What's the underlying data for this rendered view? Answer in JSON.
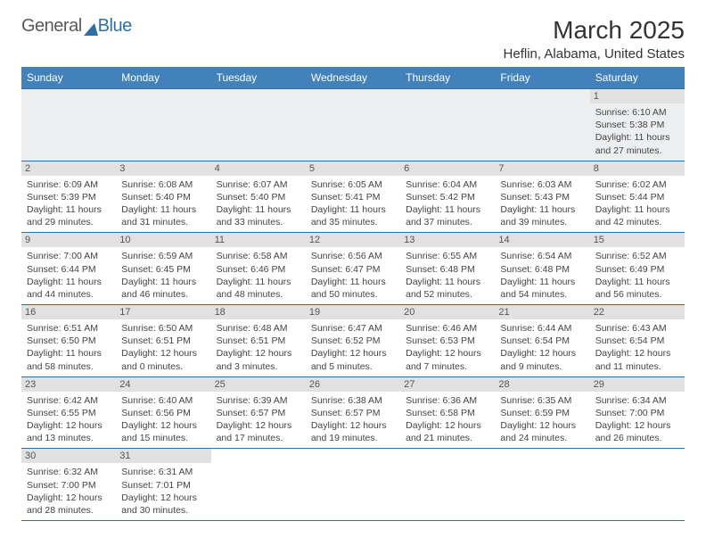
{
  "logo": {
    "word1": "General",
    "word2": "Blue"
  },
  "title": "March 2025",
  "location": "Heflin, Alabama, United States",
  "colors": {
    "header_bg": "#4281b9",
    "header_text": "#ffffff",
    "rule": "#2e6fa8",
    "daynum_bg": "#e1e1e1",
    "cell_bg": "#ffffff",
    "empty_bg": "#eceef0",
    "text": "#444444"
  },
  "day_labels": [
    "Sunday",
    "Monday",
    "Tuesday",
    "Wednesday",
    "Thursday",
    "Friday",
    "Saturday"
  ],
  "weeks": [
    [
      null,
      null,
      null,
      null,
      null,
      null,
      {
        "n": "1",
        "sunrise": "Sunrise: 6:10 AM",
        "sunset": "Sunset: 5:38 PM",
        "daylight1": "Daylight: 11 hours",
        "daylight2": "and 27 minutes."
      }
    ],
    [
      {
        "n": "2",
        "sunrise": "Sunrise: 6:09 AM",
        "sunset": "Sunset: 5:39 PM",
        "daylight1": "Daylight: 11 hours",
        "daylight2": "and 29 minutes."
      },
      {
        "n": "3",
        "sunrise": "Sunrise: 6:08 AM",
        "sunset": "Sunset: 5:40 PM",
        "daylight1": "Daylight: 11 hours",
        "daylight2": "and 31 minutes."
      },
      {
        "n": "4",
        "sunrise": "Sunrise: 6:07 AM",
        "sunset": "Sunset: 5:40 PM",
        "daylight1": "Daylight: 11 hours",
        "daylight2": "and 33 minutes."
      },
      {
        "n": "5",
        "sunrise": "Sunrise: 6:05 AM",
        "sunset": "Sunset: 5:41 PM",
        "daylight1": "Daylight: 11 hours",
        "daylight2": "and 35 minutes."
      },
      {
        "n": "6",
        "sunrise": "Sunrise: 6:04 AM",
        "sunset": "Sunset: 5:42 PM",
        "daylight1": "Daylight: 11 hours",
        "daylight2": "and 37 minutes."
      },
      {
        "n": "7",
        "sunrise": "Sunrise: 6:03 AM",
        "sunset": "Sunset: 5:43 PM",
        "daylight1": "Daylight: 11 hours",
        "daylight2": "and 39 minutes."
      },
      {
        "n": "8",
        "sunrise": "Sunrise: 6:02 AM",
        "sunset": "Sunset: 5:44 PM",
        "daylight1": "Daylight: 11 hours",
        "daylight2": "and 42 minutes."
      }
    ],
    [
      {
        "n": "9",
        "sunrise": "Sunrise: 7:00 AM",
        "sunset": "Sunset: 6:44 PM",
        "daylight1": "Daylight: 11 hours",
        "daylight2": "and 44 minutes."
      },
      {
        "n": "10",
        "sunrise": "Sunrise: 6:59 AM",
        "sunset": "Sunset: 6:45 PM",
        "daylight1": "Daylight: 11 hours",
        "daylight2": "and 46 minutes."
      },
      {
        "n": "11",
        "sunrise": "Sunrise: 6:58 AM",
        "sunset": "Sunset: 6:46 PM",
        "daylight1": "Daylight: 11 hours",
        "daylight2": "and 48 minutes."
      },
      {
        "n": "12",
        "sunrise": "Sunrise: 6:56 AM",
        "sunset": "Sunset: 6:47 PM",
        "daylight1": "Daylight: 11 hours",
        "daylight2": "and 50 minutes."
      },
      {
        "n": "13",
        "sunrise": "Sunrise: 6:55 AM",
        "sunset": "Sunset: 6:48 PM",
        "daylight1": "Daylight: 11 hours",
        "daylight2": "and 52 minutes."
      },
      {
        "n": "14",
        "sunrise": "Sunrise: 6:54 AM",
        "sunset": "Sunset: 6:48 PM",
        "daylight1": "Daylight: 11 hours",
        "daylight2": "and 54 minutes."
      },
      {
        "n": "15",
        "sunrise": "Sunrise: 6:52 AM",
        "sunset": "Sunset: 6:49 PM",
        "daylight1": "Daylight: 11 hours",
        "daylight2": "and 56 minutes."
      }
    ],
    [
      {
        "n": "16",
        "sunrise": "Sunrise: 6:51 AM",
        "sunset": "Sunset: 6:50 PM",
        "daylight1": "Daylight: 11 hours",
        "daylight2": "and 58 minutes."
      },
      {
        "n": "17",
        "sunrise": "Sunrise: 6:50 AM",
        "sunset": "Sunset: 6:51 PM",
        "daylight1": "Daylight: 12 hours",
        "daylight2": "and 0 minutes."
      },
      {
        "n": "18",
        "sunrise": "Sunrise: 6:48 AM",
        "sunset": "Sunset: 6:51 PM",
        "daylight1": "Daylight: 12 hours",
        "daylight2": "and 3 minutes."
      },
      {
        "n": "19",
        "sunrise": "Sunrise: 6:47 AM",
        "sunset": "Sunset: 6:52 PM",
        "daylight1": "Daylight: 12 hours",
        "daylight2": "and 5 minutes."
      },
      {
        "n": "20",
        "sunrise": "Sunrise: 6:46 AM",
        "sunset": "Sunset: 6:53 PM",
        "daylight1": "Daylight: 12 hours",
        "daylight2": "and 7 minutes."
      },
      {
        "n": "21",
        "sunrise": "Sunrise: 6:44 AM",
        "sunset": "Sunset: 6:54 PM",
        "daylight1": "Daylight: 12 hours",
        "daylight2": "and 9 minutes."
      },
      {
        "n": "22",
        "sunrise": "Sunrise: 6:43 AM",
        "sunset": "Sunset: 6:54 PM",
        "daylight1": "Daylight: 12 hours",
        "daylight2": "and 11 minutes."
      }
    ],
    [
      {
        "n": "23",
        "sunrise": "Sunrise: 6:42 AM",
        "sunset": "Sunset: 6:55 PM",
        "daylight1": "Daylight: 12 hours",
        "daylight2": "and 13 minutes."
      },
      {
        "n": "24",
        "sunrise": "Sunrise: 6:40 AM",
        "sunset": "Sunset: 6:56 PM",
        "daylight1": "Daylight: 12 hours",
        "daylight2": "and 15 minutes."
      },
      {
        "n": "25",
        "sunrise": "Sunrise: 6:39 AM",
        "sunset": "Sunset: 6:57 PM",
        "daylight1": "Daylight: 12 hours",
        "daylight2": "and 17 minutes."
      },
      {
        "n": "26",
        "sunrise": "Sunrise: 6:38 AM",
        "sunset": "Sunset: 6:57 PM",
        "daylight1": "Daylight: 12 hours",
        "daylight2": "and 19 minutes."
      },
      {
        "n": "27",
        "sunrise": "Sunrise: 6:36 AM",
        "sunset": "Sunset: 6:58 PM",
        "daylight1": "Daylight: 12 hours",
        "daylight2": "and 21 minutes."
      },
      {
        "n": "28",
        "sunrise": "Sunrise: 6:35 AM",
        "sunset": "Sunset: 6:59 PM",
        "daylight1": "Daylight: 12 hours",
        "daylight2": "and 24 minutes."
      },
      {
        "n": "29",
        "sunrise": "Sunrise: 6:34 AM",
        "sunset": "Sunset: 7:00 PM",
        "daylight1": "Daylight: 12 hours",
        "daylight2": "and 26 minutes."
      }
    ],
    [
      {
        "n": "30",
        "sunrise": "Sunrise: 6:32 AM",
        "sunset": "Sunset: 7:00 PM",
        "daylight1": "Daylight: 12 hours",
        "daylight2": "and 28 minutes."
      },
      {
        "n": "31",
        "sunrise": "Sunrise: 6:31 AM",
        "sunset": "Sunset: 7:01 PM",
        "daylight1": "Daylight: 12 hours",
        "daylight2": "and 30 minutes."
      },
      null,
      null,
      null,
      null,
      null
    ]
  ]
}
